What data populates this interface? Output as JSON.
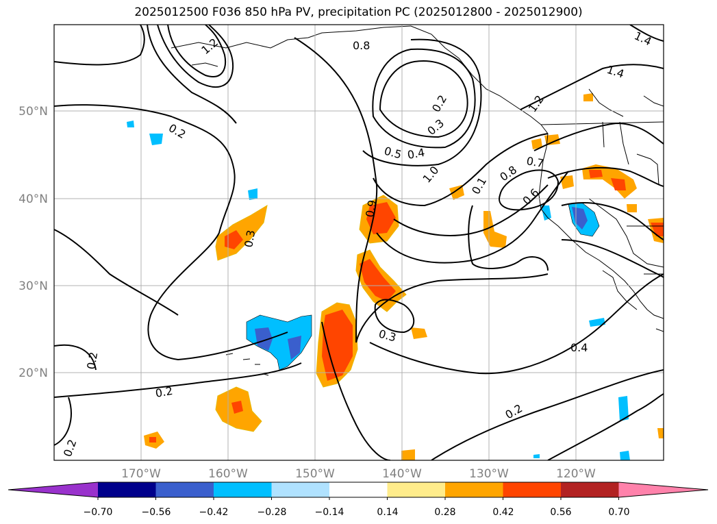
{
  "title": "2025012500 F036 850 hPa PV, precipitation PC (2025012800 - 2025012900)",
  "map": {
    "lon_labels": [
      "170°W",
      "160°W",
      "150°W",
      "140°W",
      "130°W",
      "120°W"
    ],
    "lat_labels": [
      "50°N",
      "40°N",
      "30°N",
      "20°N"
    ],
    "contour_labels": [
      "0.8",
      "1.4",
      "1.4",
      "1.2",
      "0.2",
      "0.2",
      "0.3",
      "0.5",
      "0.4",
      "1.0",
      "0.7",
      "0.8",
      "0.1",
      "0.6",
      "0.9",
      "0.3",
      "0.3",
      "0.2",
      "0.2",
      "0.4",
      "0.2",
      "0.2",
      "1.2"
    ],
    "colors": {
      "land_outline": "#000000",
      "grid": "#b0b0b0",
      "contour": "#000000"
    }
  },
  "colorbar": {
    "ticks": [
      "−0.70",
      "−0.56",
      "−0.42",
      "−0.28",
      "−0.14",
      "0.14",
      "0.28",
      "0.42",
      "0.56",
      "0.70"
    ],
    "colors": [
      "#9932cc",
      "#00008b",
      "#3a5fcd",
      "#00bfff",
      "#b0e2ff",
      "#ffffff",
      "#ffec8b",
      "#ffa500",
      "#ff4500",
      "#b22222",
      "#ff82ab"
    ]
  }
}
